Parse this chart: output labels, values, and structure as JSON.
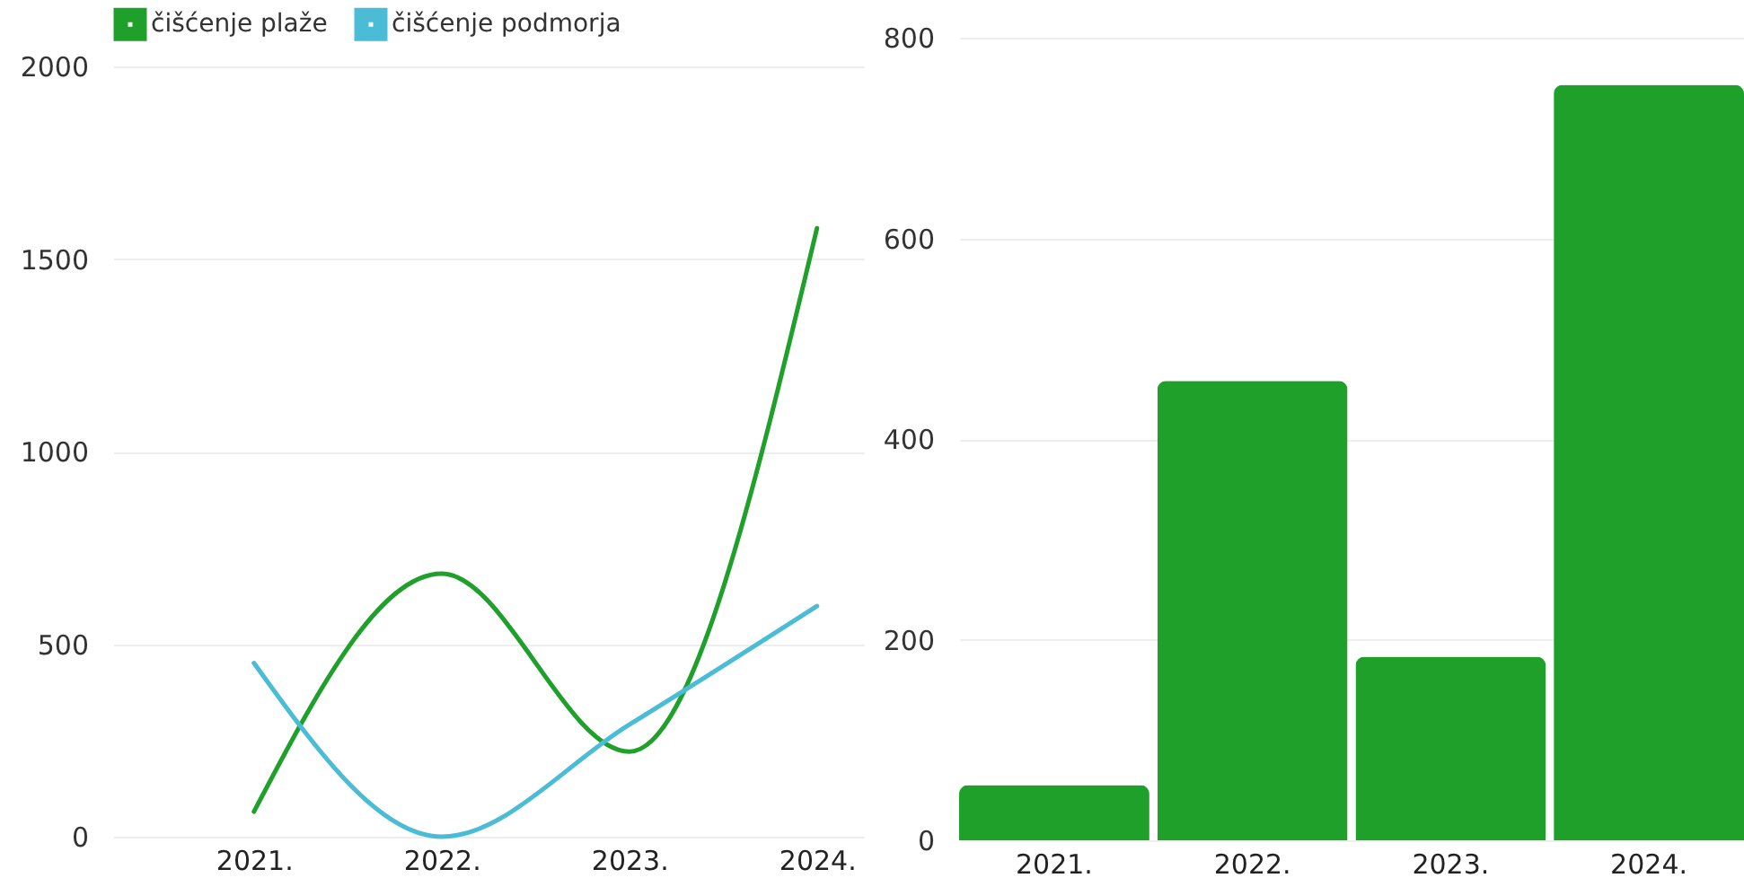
{
  "chart_data": [
    {
      "type": "line",
      "categories": [
        "2021.",
        "2022.",
        "2023.",
        "2024."
      ],
      "series": [
        {
          "name": "čišćenje plaže",
          "color": "#1fa02a",
          "values": [
            65,
            683,
            221,
            1580
          ]
        },
        {
          "name": "čišćenje podmorja",
          "color": "#4bbcd6",
          "values": [
            451,
            0,
            291,
            599
          ]
        }
      ],
      "ylim": [
        0,
        2000
      ],
      "yticks": [
        0,
        500,
        1000,
        1500,
        2000
      ],
      "grid": "y",
      "legend": "top"
    },
    {
      "type": "bar",
      "categories": [
        "2021.",
        "2022.",
        "2023.",
        "2024."
      ],
      "values": [
        55,
        458,
        183,
        753
      ],
      "color": "#1fa02a",
      "ylim": [
        0,
        800
      ],
      "yticks": [
        0,
        200,
        400,
        600,
        800
      ],
      "grid": "y"
    }
  ]
}
